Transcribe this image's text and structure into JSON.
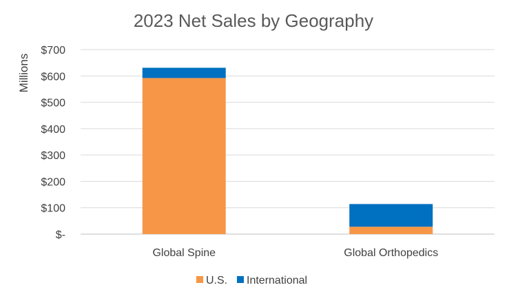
{
  "chart_data": {
    "type": "bar",
    "stacked": true,
    "title": "2023 Net Sales by Geography",
    "ylabel": "Millions",
    "xlabel": "",
    "categories": [
      "Global Spine",
      "Global Orthopedics"
    ],
    "series": [
      {
        "name": "U.S.",
        "color": "#F79646",
        "values": [
          592,
          28
        ]
      },
      {
        "name": "International",
        "color": "#0070C0",
        "values": [
          39,
          86
        ]
      }
    ],
    "ylim": [
      0,
      700
    ],
    "ytick_values": [
      0,
      100,
      200,
      300,
      400,
      500,
      600,
      700
    ],
    "ytick_labels": [
      "$-",
      "$100",
      "$200",
      "$300",
      "$400",
      "$500",
      "$600",
      "$700"
    ],
    "grid": true,
    "legend_position": "bottom"
  }
}
